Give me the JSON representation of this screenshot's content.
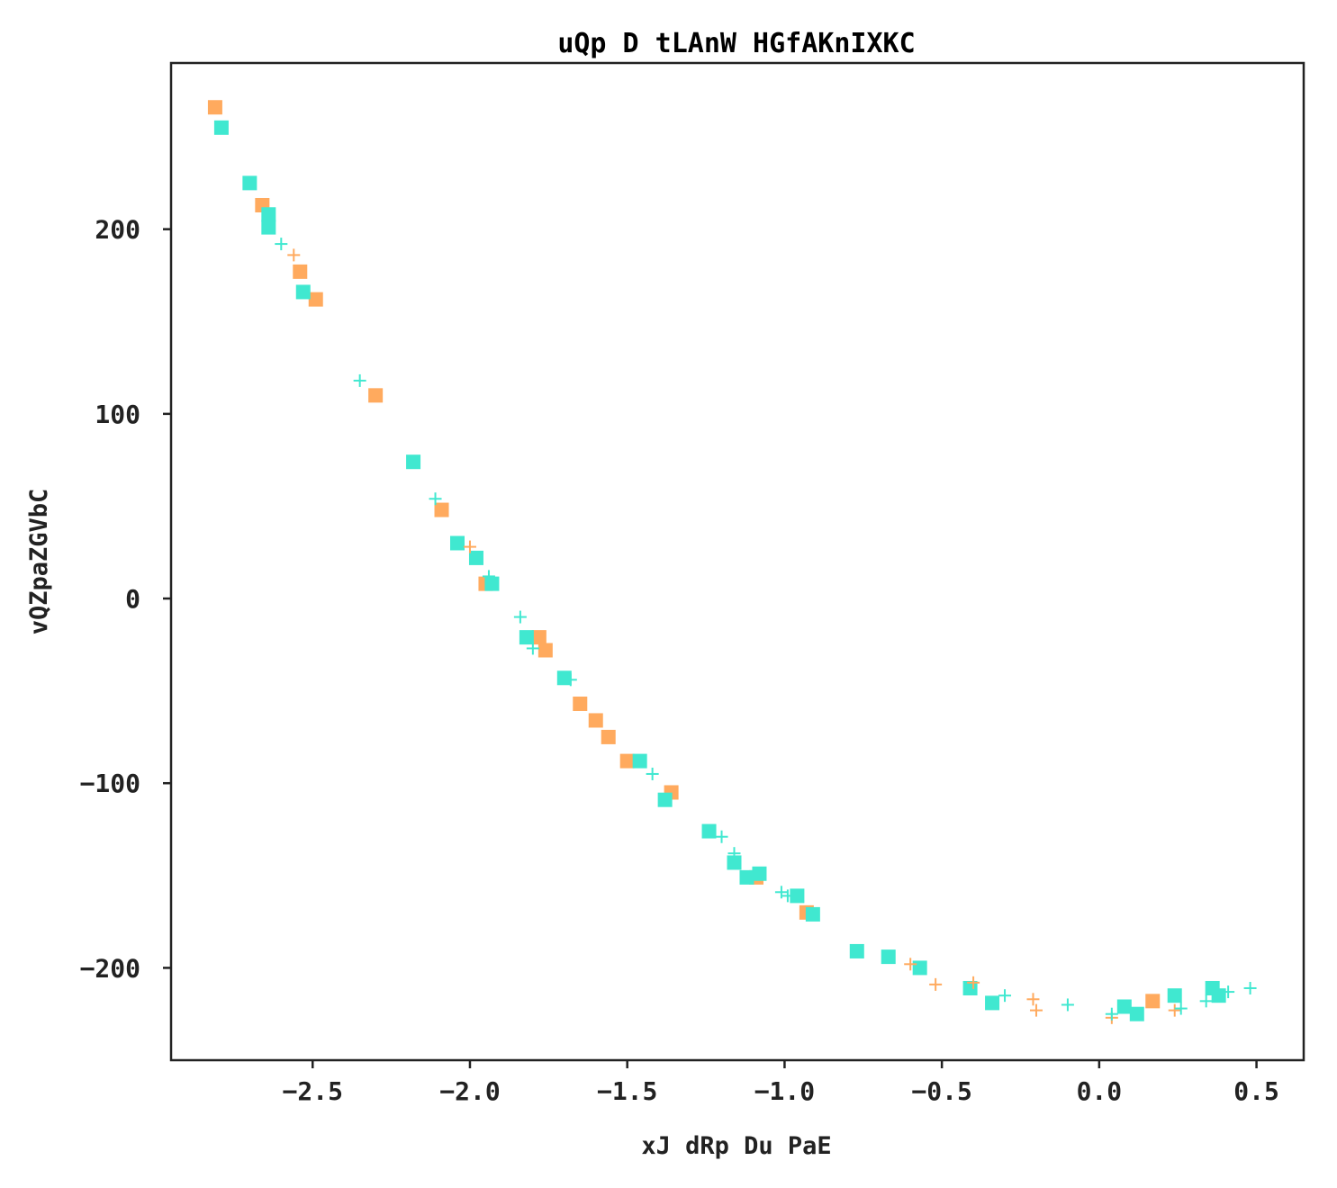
{
  "chart_data": {
    "type": "scatter",
    "title": "uQp  D tLAnW HGfAKnIXKC",
    "xlabel": "xJ dRp Du  PaE",
    "ylabel": "vQZpaZGVbC",
    "xlim": [
      -2.95,
      0.65
    ],
    "ylim": [
      -250,
      290
    ],
    "xticks": [
      -2.5,
      -2.0,
      -1.5,
      -1.0,
      -0.5,
      0.0,
      0.5
    ],
    "xtick_labels": [
      "−2.5",
      "−2.0",
      "−1.5",
      "−1.0",
      "−0.5",
      "0.0",
      "0.5"
    ],
    "yticks": [
      200,
      100,
      0,
      -100,
      -200
    ],
    "ytick_labels": [
      "200",
      "100",
      "0",
      "−100",
      "−200"
    ],
    "grid": false,
    "series": [
      {
        "marker": "square",
        "color": "#FFAA5E",
        "points": [
          [
            -2.81,
            266
          ],
          [
            -2.66,
            213
          ],
          [
            -2.54,
            177
          ],
          [
            -2.49,
            162
          ],
          [
            -2.3,
            110
          ],
          [
            -2.09,
            48
          ],
          [
            -1.95,
            8
          ],
          [
            -1.78,
            -21
          ],
          [
            -1.76,
            -28
          ],
          [
            -1.65,
            -57
          ],
          [
            -1.6,
            -66
          ],
          [
            -1.56,
            -75
          ],
          [
            -1.5,
            -88
          ],
          [
            -1.36,
            -105
          ],
          [
            -1.09,
            -151
          ],
          [
            -0.93,
            -170
          ],
          [
            0.17,
            -218
          ]
        ]
      },
      {
        "marker": "square",
        "color": "#40E8D0",
        "points": [
          [
            -2.79,
            255
          ],
          [
            -2.7,
            225
          ],
          [
            -2.64,
            208
          ],
          [
            -2.64,
            201
          ],
          [
            -2.53,
            166
          ],
          [
            -2.18,
            74
          ],
          [
            -2.04,
            30
          ],
          [
            -1.98,
            22
          ],
          [
            -1.93,
            8
          ],
          [
            -1.82,
            -21
          ],
          [
            -1.7,
            -43
          ],
          [
            -1.46,
            -88
          ],
          [
            -1.38,
            -109
          ],
          [
            -1.24,
            -126
          ],
          [
            -1.16,
            -143
          ],
          [
            -1.12,
            -151
          ],
          [
            -1.08,
            -149
          ],
          [
            -0.96,
            -161
          ],
          [
            -0.91,
            -171
          ],
          [
            -0.77,
            -191
          ],
          [
            -0.67,
            -194
          ],
          [
            -0.57,
            -200
          ],
          [
            -0.41,
            -211
          ],
          [
            -0.34,
            -219
          ],
          [
            0.08,
            -221
          ],
          [
            0.12,
            -225
          ],
          [
            0.24,
            -215
          ],
          [
            0.36,
            -211
          ],
          [
            0.38,
            -215
          ]
        ]
      },
      {
        "marker": "plus",
        "color": "#FFAA5E",
        "points": [
          [
            -2.56,
            186
          ],
          [
            -2.0,
            28
          ],
          [
            -0.6,
            -198
          ],
          [
            -0.52,
            -209
          ],
          [
            -0.4,
            -208
          ],
          [
            -0.21,
            -217
          ],
          [
            -0.2,
            -223
          ],
          [
            0.04,
            -227
          ],
          [
            0.24,
            -223
          ]
        ]
      },
      {
        "marker": "plus",
        "color": "#40E8D0",
        "points": [
          [
            -2.6,
            192
          ],
          [
            -2.35,
            118
          ],
          [
            -2.11,
            54
          ],
          [
            -1.94,
            12
          ],
          [
            -1.84,
            -10
          ],
          [
            -1.8,
            -27
          ],
          [
            -1.68,
            -44
          ],
          [
            -1.42,
            -95
          ],
          [
            -1.2,
            -129
          ],
          [
            -1.16,
            -138
          ],
          [
            -1.01,
            -159
          ],
          [
            -0.99,
            -161
          ],
          [
            -0.3,
            -215
          ],
          [
            -0.1,
            -220
          ],
          [
            0.04,
            -225
          ],
          [
            0.26,
            -222
          ],
          [
            0.34,
            -218
          ],
          [
            0.41,
            -213
          ],
          [
            0.48,
            -211
          ]
        ]
      }
    ]
  }
}
